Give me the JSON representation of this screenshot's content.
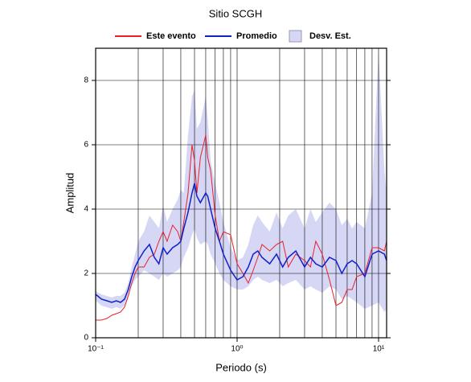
{
  "chart_data": {
    "type": "line",
    "title": "Sitio SCGH",
    "x_label": "Periodo (s)",
    "y_label": "Amplitud",
    "x_scale": "log",
    "xlim": [
      0.1,
      11.4
    ],
    "ylim": [
      0,
      9
    ],
    "xticks": [
      {
        "value": 0.1,
        "label": "10⁻¹"
      },
      {
        "value": 1,
        "label": "10⁰"
      },
      {
        "value": 10,
        "label": "10¹"
      }
    ],
    "minor_xticks": [
      0.2,
      0.3,
      0.4,
      0.5,
      0.6,
      0.7,
      0.8,
      0.9,
      2,
      3,
      4,
      5,
      6,
      7,
      8,
      9
    ],
    "yticks": [
      0,
      2,
      4,
      6,
      8
    ],
    "grid": true,
    "x": [
      0.1,
      0.11,
      0.12,
      0.13,
      0.14,
      0.15,
      0.16,
      0.17,
      0.18,
      0.19,
      0.2,
      0.22,
      0.24,
      0.26,
      0.28,
      0.3,
      0.32,
      0.35,
      0.38,
      0.4,
      0.42,
      0.45,
      0.48,
      0.5,
      0.52,
      0.55,
      0.6,
      0.62,
      0.65,
      0.7,
      0.75,
      0.8,
      0.9,
      1.0,
      1.1,
      1.2,
      1.3,
      1.4,
      1.5,
      1.7,
      1.9,
      2.1,
      2.3,
      2.6,
      3.0,
      3.3,
      3.6,
      4.0,
      4.5,
      5,
      5.5,
      6,
      6.5,
      7,
      8,
      9,
      10,
      11,
      11.4
    ],
    "band": {
      "name": "Desv. Est.",
      "color": "#d6d6f5",
      "lower": [
        1.15,
        1.0,
        0.95,
        0.9,
        0.95,
        0.9,
        1.0,
        1.3,
        1.6,
        1.8,
        1.9,
        2.1,
        2.0,
        1.9,
        1.8,
        2.0,
        1.9,
        2.0,
        2.1,
        2.2,
        2.5,
        2.8,
        3.2,
        3.4,
        3.1,
        2.9,
        3.0,
        2.9,
        2.6,
        2.3,
        2.0,
        1.8,
        1.6,
        1.5,
        1.5,
        1.6,
        1.8,
        1.9,
        1.8,
        1.7,
        1.8,
        1.6,
        1.7,
        1.8,
        1.5,
        1.6,
        1.5,
        1.4,
        1.6,
        1.5,
        1.2,
        1.3,
        1.2,
        1.1,
        0.9,
        1.0,
        1.1,
        0.8,
        0.9
      ],
      "upper": [
        1.45,
        1.35,
        1.3,
        1.25,
        1.3,
        1.3,
        1.4,
        1.7,
        2.2,
        2.6,
        3.0,
        3.3,
        3.8,
        3.6,
        3.4,
        4.1,
        3.6,
        4.0,
        4.3,
        4.6,
        4.5,
        6.3,
        7.5,
        7.7,
        6.5,
        6.7,
        7.5,
        6.8,
        5.5,
        4.8,
        4.2,
        3.6,
        2.8,
        2.4,
        2.5,
        2.9,
        3.5,
        3.8,
        3.6,
        3.3,
        3.9,
        3.4,
        3.8,
        4.0,
        3.4,
        4.0,
        3.6,
        3.9,
        4.2,
        4.0,
        3.5,
        3.7,
        3.4,
        3.6,
        3.4,
        4.5,
        8.9,
        5.2,
        4.5
      ]
    },
    "series": [
      {
        "name": "Este evento",
        "color": "#e8202a",
        "values": [
          0.55,
          0.55,
          0.6,
          0.7,
          0.75,
          0.8,
          0.95,
          1.3,
          1.7,
          2.0,
          2.2,
          2.2,
          2.5,
          2.6,
          3.0,
          3.3,
          3.0,
          3.5,
          3.3,
          3.0,
          3.6,
          4.5,
          6.0,
          5.5,
          4.5,
          5.6,
          6.3,
          5.6,
          5.2,
          3.8,
          3.0,
          3.3,
          3.2,
          2.3,
          2.0,
          1.7,
          2.1,
          2.5,
          2.9,
          2.7,
          2.9,
          3.0,
          2.2,
          2.6,
          2.4,
          2.2,
          3.0,
          2.6,
          1.8,
          1.0,
          1.1,
          1.5,
          1.5,
          1.9,
          2.0,
          2.8,
          2.8,
          2.7,
          3.0
        ]
      },
      {
        "name": "Promedio",
        "color": "#1020c8",
        "values": [
          1.35,
          1.2,
          1.15,
          1.1,
          1.15,
          1.1,
          1.2,
          1.5,
          1.9,
          2.2,
          2.4,
          2.7,
          2.9,
          2.5,
          2.3,
          2.8,
          2.6,
          2.8,
          2.9,
          3.0,
          3.4,
          3.9,
          4.5,
          4.8,
          4.4,
          4.2,
          4.5,
          4.4,
          4.0,
          3.4,
          3.0,
          2.6,
          2.1,
          1.8,
          1.9,
          2.2,
          2.6,
          2.7,
          2.5,
          2.3,
          2.6,
          2.2,
          2.5,
          2.7,
          2.2,
          2.5,
          2.3,
          2.2,
          2.5,
          2.4,
          2.0,
          2.3,
          2.4,
          2.3,
          1.9,
          2.6,
          2.7,
          2.6,
          2.4
        ]
      }
    ]
  }
}
